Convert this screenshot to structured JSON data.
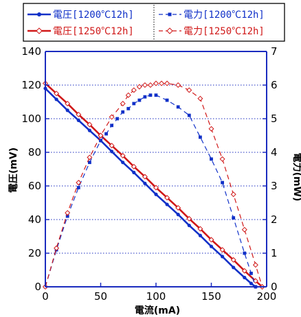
{
  "chart_data": {
    "type": "line",
    "xlabel": "電流(mA)",
    "ylabel": "電圧(mV)",
    "y2label": "電力(mW)",
    "xlim": [
      0,
      200
    ],
    "ylim": [
      0,
      140
    ],
    "y2lim": [
      0,
      7
    ],
    "xticks": [
      0,
      50,
      100,
      150,
      200
    ],
    "yticks": [
      0,
      20,
      40,
      60,
      80,
      100,
      120,
      140
    ],
    "y2ticks": [
      0,
      1,
      2,
      3,
      4,
      5,
      6,
      7
    ],
    "grid": "horizontal dotted",
    "legend_placement": "top",
    "colors": {
      "blue": "#1030c8",
      "red": "#d01818",
      "axis_blue": "#1a2bbf"
    },
    "series": [
      {
        "name": "電圧[1200℃12h]",
        "axis": "left",
        "style": "solid-line-circle",
        "color": "#1030c8",
        "x": [
          0,
          10,
          20,
          30,
          40,
          50,
          60,
          70,
          80,
          90,
          100,
          110,
          120,
          130,
          140,
          150,
          160,
          170,
          180,
          186,
          190
        ],
        "y": [
          118,
          111.5,
          105,
          99,
          93,
          87,
          80.5,
          74,
          68,
          61.5,
          55,
          49,
          43,
          36.5,
          30.5,
          24,
          18,
          11.5,
          5.5,
          2,
          0
        ]
      },
      {
        "name": "電圧[1250℃12h]",
        "axis": "left",
        "style": "solid-line-diamond",
        "color": "#d01818",
        "x": [
          0,
          10,
          20,
          30,
          40,
          50,
          60,
          70,
          80,
          90,
          100,
          110,
          120,
          130,
          140,
          150,
          160,
          170,
          180,
          190,
          196
        ],
        "y": [
          121,
          115,
          109,
          102.5,
          96.5,
          90,
          84,
          78,
          71.5,
          65.5,
          59,
          53,
          47,
          40.5,
          34.5,
          28,
          22,
          16,
          9.5,
          3.5,
          0
        ]
      },
      {
        "name": "電力[1200℃12h]",
        "axis": "right",
        "style": "dash-line-square",
        "color": "#1030c8",
        "x": [
          0,
          10,
          20,
          30,
          40,
          50,
          55,
          60,
          65,
          70,
          75,
          80,
          85,
          90,
          95,
          100,
          110,
          120,
          130,
          140,
          150,
          160,
          170,
          180,
          186,
          190
        ],
        "y": [
          0,
          1.1,
          2.1,
          2.95,
          3.7,
          4.35,
          4.55,
          4.8,
          5.0,
          5.2,
          5.3,
          5.45,
          5.55,
          5.65,
          5.7,
          5.7,
          5.55,
          5.35,
          5.1,
          4.45,
          3.8,
          3.1,
          2.05,
          1.0,
          0.4,
          0
        ]
      },
      {
        "name": "電力[1250℃12h]",
        "axis": "right",
        "style": "dash-line-diamond",
        "color": "#d01818",
        "x": [
          0,
          10,
          20,
          30,
          40,
          50,
          60,
          70,
          75,
          80,
          85,
          90,
          95,
          100,
          105,
          110,
          120,
          130,
          140,
          150,
          160,
          170,
          180,
          190,
          196
        ],
        "y": [
          0,
          1.15,
          2.2,
          3.1,
          3.85,
          4.5,
          5.05,
          5.45,
          5.7,
          5.85,
          5.95,
          6.0,
          6.0,
          6.05,
          6.05,
          6.05,
          6.0,
          5.85,
          5.6,
          4.7,
          3.8,
          2.75,
          1.7,
          0.65,
          0
        ]
      }
    ]
  }
}
